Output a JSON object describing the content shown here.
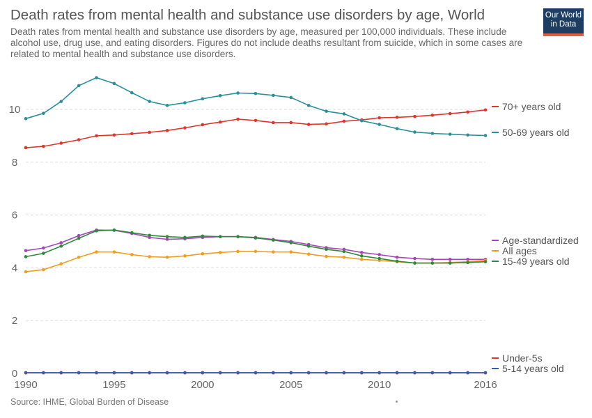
{
  "title": "Death rates from mental health and substance use disorders by age, World",
  "subtitle": "Death rates from mental health and substance use disorders by age, measured per 100,000 individuals. These include alcohol use, drug use, and eating disorders. Figures do not include deaths resultant from suicide, which in some cases are related to mental health and substance use disorders.",
  "logo": {
    "line1": "Our World",
    "line2": "in Data",
    "bg_color": "#1d3d63",
    "accent_color": "#dc5e3e"
  },
  "source": "Source: IHME, Global Burden of Disease",
  "chart_data": {
    "type": "line",
    "xlabel": "",
    "ylabel": "",
    "xlim": [
      1990,
      2016
    ],
    "ylim": [
      0,
      11
    ],
    "x_ticks": [
      1990,
      1995,
      2000,
      2005,
      2010,
      2016
    ],
    "y_ticks": [
      0,
      2,
      4,
      6,
      8,
      10
    ],
    "grid": "horizontal-dashed",
    "legend": "right-end-labels",
    "x": [
      1990,
      1991,
      1992,
      1993,
      1994,
      1995,
      1996,
      1997,
      1998,
      1999,
      2000,
      2001,
      2002,
      2003,
      2004,
      2005,
      2006,
      2007,
      2008,
      2009,
      2010,
      2011,
      2012,
      2013,
      2014,
      2015,
      2016
    ],
    "series": [
      {
        "name": "70+ years old",
        "color": "#e0352b",
        "values": [
          8.55,
          8.6,
          8.72,
          8.85,
          9.0,
          9.03,
          9.08,
          9.13,
          9.2,
          9.3,
          9.42,
          9.52,
          9.63,
          9.58,
          9.5,
          9.5,
          9.43,
          9.45,
          9.55,
          9.6,
          9.68,
          9.7,
          9.73,
          9.78,
          9.84,
          9.9,
          9.98
        ]
      },
      {
        "name": "50-69 years old",
        "color": "#2a8f9a",
        "values": [
          9.65,
          9.85,
          10.3,
          10.9,
          11.2,
          10.98,
          10.63,
          10.3,
          10.15,
          10.25,
          10.4,
          10.52,
          10.62,
          10.6,
          10.53,
          10.45,
          10.15,
          9.93,
          9.83,
          9.57,
          9.43,
          9.27,
          9.14,
          9.09,
          9.06,
          9.03,
          9.01
        ]
      },
      {
        "name": "Age-standardized",
        "color": "#a545b8",
        "values": [
          4.65,
          4.75,
          4.95,
          5.22,
          5.43,
          5.42,
          5.3,
          5.15,
          5.08,
          5.1,
          5.15,
          5.18,
          5.18,
          5.15,
          5.07,
          5.0,
          4.88,
          4.76,
          4.7,
          4.58,
          4.5,
          4.4,
          4.35,
          4.32,
          4.32,
          4.32,
          4.32
        ]
      },
      {
        "name": "All ages",
        "color": "#f29d1f",
        "values": [
          3.85,
          3.93,
          4.15,
          4.4,
          4.6,
          4.6,
          4.5,
          4.42,
          4.4,
          4.45,
          4.53,
          4.58,
          4.62,
          4.62,
          4.6,
          4.6,
          4.52,
          4.43,
          4.4,
          4.32,
          4.28,
          4.23,
          4.18,
          4.18,
          4.2,
          4.23,
          4.28
        ]
      },
      {
        "name": "15-49 years old",
        "color": "#2d8a3a",
        "values": [
          4.42,
          4.55,
          4.82,
          5.12,
          5.4,
          5.43,
          5.33,
          5.23,
          5.18,
          5.15,
          5.2,
          5.18,
          5.18,
          5.13,
          5.05,
          4.95,
          4.82,
          4.7,
          4.62,
          4.45,
          4.35,
          4.25,
          4.18,
          4.18,
          4.18,
          4.2,
          4.23
        ]
      },
      {
        "name": "Under-5s",
        "color": "#e0352b",
        "values": [
          0.02,
          0.02,
          0.02,
          0.02,
          0.02,
          0.02,
          0.02,
          0.02,
          0.02,
          0.02,
          0.02,
          0.02,
          0.02,
          0.02,
          0.02,
          0.02,
          0.02,
          0.02,
          0.02,
          0.02,
          0.02,
          0.02,
          0.02,
          0.02,
          0.02,
          0.02,
          0.02
        ]
      },
      {
        "name": "5-14 years old",
        "color": "#3a5ca8",
        "values": [
          0.03,
          0.03,
          0.03,
          0.03,
          0.03,
          0.03,
          0.03,
          0.03,
          0.03,
          0.03,
          0.03,
          0.03,
          0.03,
          0.03,
          0.03,
          0.03,
          0.03,
          0.03,
          0.03,
          0.03,
          0.03,
          0.03,
          0.03,
          0.03,
          0.03,
          0.03,
          0.03
        ]
      }
    ]
  }
}
